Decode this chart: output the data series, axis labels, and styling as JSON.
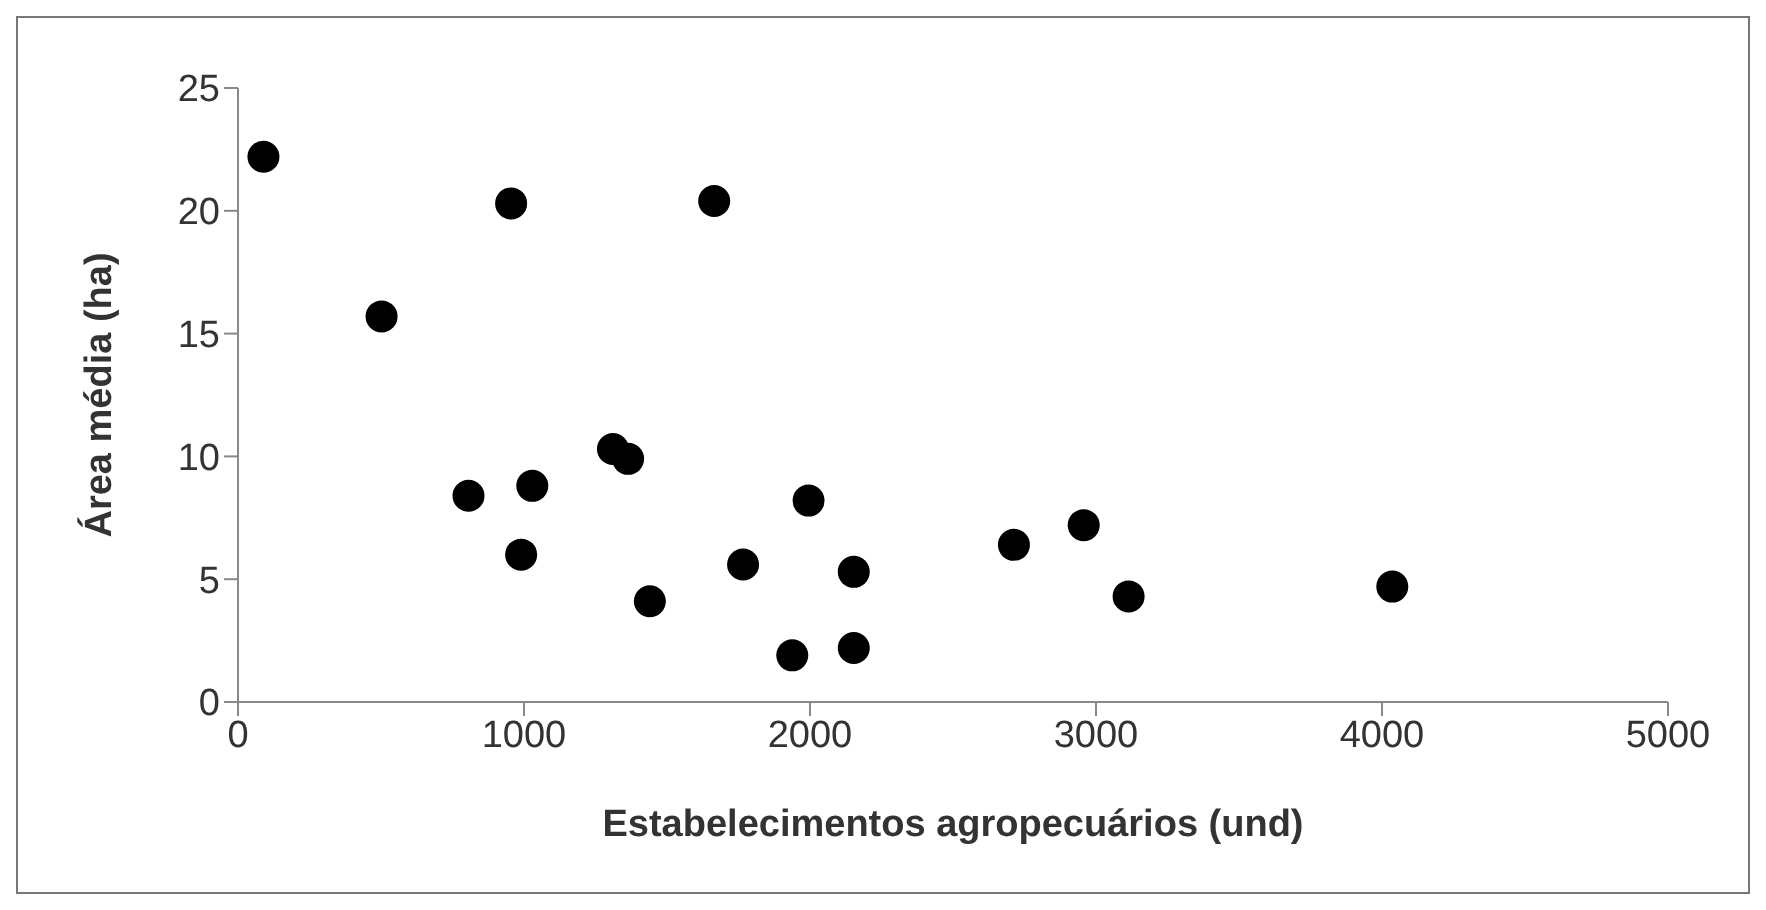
{
  "chart_data": {
    "type": "scatter",
    "xlabel": "Estabelecimentos agropecuários (und)",
    "ylabel": "Área média (ha)",
    "x": [
      89,
      955,
      1665,
      502,
      806,
      1029,
      990,
      1311,
      1364,
      1440,
      1766,
      1995,
      2153,
      1938,
      2153,
      2713,
      2957,
      3114,
      4036
    ],
    "series": [
      {
        "color": "#000000",
        "values": [
          22.2,
          20.3,
          20.4,
          15.7,
          8.4,
          8.8,
          6.0,
          10.3,
          9.9,
          4.1,
          5.6,
          8.2,
          5.3,
          1.9,
          2.2,
          6.4,
          7.2,
          4.3,
          4.7
        ]
      }
    ],
    "xlim": [
      0,
      5000
    ],
    "xticks": [
      0,
      1000,
      2000,
      3000,
      4000,
      5000
    ],
    "ylim": [
      0,
      25
    ],
    "yticks": [
      0,
      5,
      10,
      15,
      20,
      25
    ],
    "grid": false,
    "marker": "circle"
  }
}
